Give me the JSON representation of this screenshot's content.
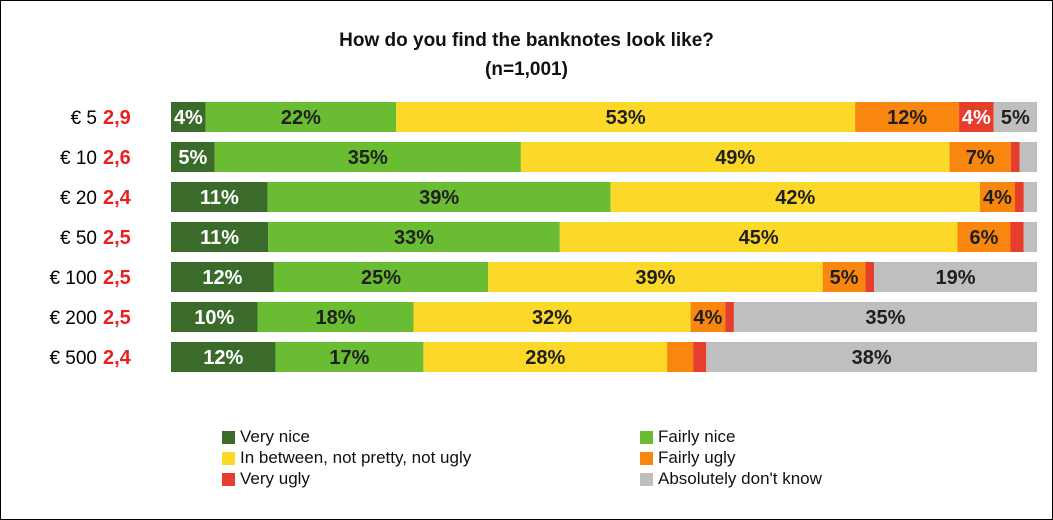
{
  "chart_data": {
    "type": "bar",
    "orientation": "horizontal",
    "stacked": "percent",
    "title": "How do you find the banknotes look like?",
    "subtitle": "(n=1,001)",
    "categories": [
      "€ 5",
      "€ 10",
      "€ 20",
      "€ 50",
      "€ 100",
      "€ 200",
      "€ 500"
    ],
    "scores": [
      "2,9",
      "2,6",
      "2,4",
      "2,5",
      "2,5",
      "2,5",
      "2,4"
    ],
    "series": [
      {
        "name": "Very nice",
        "color": "#3a6b2a",
        "label_color": "#ffffff",
        "values": [
          4,
          5,
          11,
          11,
          12,
          10,
          12
        ],
        "labels": [
          "4%",
          "5%",
          "11%",
          "11%",
          "12%",
          "10%",
          "12%"
        ]
      },
      {
        "name": "Fairly nice",
        "color": "#6abd33",
        "label_color": "#1f1f1f",
        "values": [
          22,
          35,
          39,
          33,
          25,
          18,
          17
        ],
        "labels": [
          "22%",
          "35%",
          "39%",
          "33%",
          "25%",
          "18%",
          "17%"
        ]
      },
      {
        "name": "In between, not pretty, not ugly",
        "color": "#fcd829",
        "label_color": "#1f1f1f",
        "values": [
          53,
          49,
          42,
          45,
          39,
          32,
          28
        ],
        "labels": [
          "53%",
          "49%",
          "42%",
          "45%",
          "39%",
          "32%",
          "28%"
        ]
      },
      {
        "name": "Fairly ugly",
        "color": "#f9860e",
        "label_color": "#1f1f1f",
        "values": [
          12,
          7,
          4,
          6,
          5,
          4,
          3
        ],
        "labels": [
          "12%",
          "7%",
          "4%",
          "6%",
          "5%",
          "4%",
          ""
        ]
      },
      {
        "name": "Very ugly",
        "color": "#e63d2d",
        "label_color": "#ffffff",
        "values": [
          4,
          1,
          1,
          1.5,
          1,
          1,
          1.5
        ],
        "labels": [
          "4%",
          "",
          "",
          "",
          "",
          "",
          ""
        ]
      },
      {
        "name": "Absolutely don't know",
        "color": "#bfbfbf",
        "label_color": "#1f1f1f",
        "values": [
          5,
          2,
          1.5,
          1.5,
          19,
          35,
          38
        ],
        "labels": [
          "5%",
          "",
          "",
          "",
          "19%",
          "35%",
          "38%"
        ]
      }
    ],
    "xlim": [
      0,
      100
    ],
    "legend_position": "bottom",
    "grid": false
  }
}
